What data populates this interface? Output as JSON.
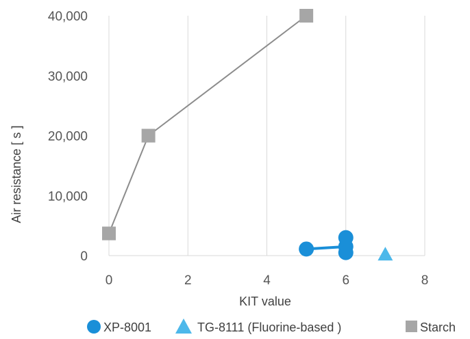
{
  "chart_data": {
    "type": "scatter",
    "title": "",
    "xlabel": "KIT value",
    "ylabel": "Air resistance [ s ]",
    "xlim": [
      0,
      8
    ],
    "ylim": [
      0,
      40000
    ],
    "x_ticks": [
      0,
      2,
      4,
      6,
      8
    ],
    "y_ticks": [
      0,
      10000,
      20000,
      30000,
      40000
    ],
    "x_tick_labels": [
      "0",
      "2",
      "4",
      "6",
      "8"
    ],
    "y_tick_labels": [
      "0",
      "10,000",
      "20,000",
      "30,000",
      "40,000"
    ],
    "grid": "vertical-only",
    "legend_position": "bottom",
    "series": [
      {
        "name": "XP-8001",
        "marker": "circle",
        "color": "#1a8fd8",
        "line_color": "#1a8fd8",
        "lines": true,
        "points": [
          {
            "x": 5,
            "y": 1100
          },
          {
            "x": 6,
            "y": 1500
          },
          {
            "x": 6,
            "y": 3000
          },
          {
            "x": 6,
            "y": 500
          }
        ],
        "connect": [
          [
            0,
            1
          ]
        ]
      },
      {
        "name": "TG-8111 (Fluorine-based )",
        "marker": "triangle",
        "color": "#4db8ea",
        "lines": false,
        "points": [
          {
            "x": 7,
            "y": 100
          }
        ]
      },
      {
        "name": "Starch",
        "marker": "square",
        "color": "#a6a6a6",
        "line_color": "#8c8c8c",
        "lines": true,
        "points": [
          {
            "x": 0,
            "y": 3700
          },
          {
            "x": 1,
            "y": 20000
          },
          {
            "x": 5,
            "y": 40000
          }
        ],
        "connect": [
          [
            0,
            1
          ],
          [
            1,
            2
          ]
        ]
      }
    ]
  }
}
